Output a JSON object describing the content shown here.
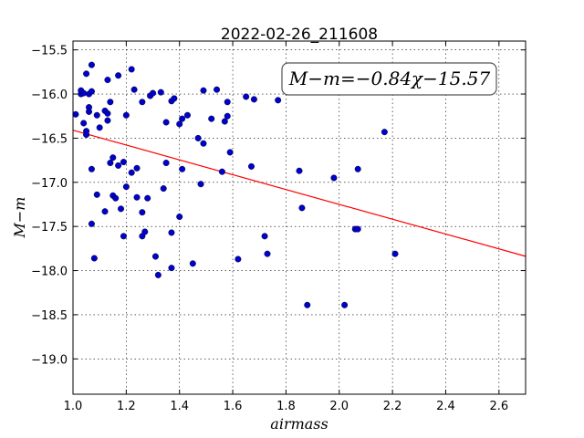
{
  "chart_data": {
    "type": "scatter",
    "title": "2022-02-26_211608",
    "xlabel": "airmass",
    "ylabel": "M−m",
    "xlim": [
      1.0,
      2.7
    ],
    "ylim": [
      -19.4,
      -15.4
    ],
    "y_inverted": true,
    "grid": true,
    "x_ticks": [
      "1.0",
      "1.2",
      "1.4",
      "1.6",
      "1.8",
      "2.0",
      "2.2",
      "2.4",
      "2.6"
    ],
    "y_ticks": [
      "−15.5",
      "−16.0",
      "−16.5",
      "−17.0",
      "−17.5",
      "−18.0",
      "−18.5",
      "−19.0"
    ],
    "annotation": "M−m=−0.84χ−15.57",
    "fit": {
      "slope": -0.84,
      "intercept": -15.57,
      "color": "#ff0000"
    },
    "point_color": "#0000cc",
    "points": [
      [
        1.01,
        -16.23
      ],
      [
        1.03,
        -16.0
      ],
      [
        1.03,
        -15.96
      ],
      [
        1.04,
        -16.33
      ],
      [
        1.04,
        -15.99
      ],
      [
        1.05,
        -15.77
      ],
      [
        1.05,
        -16.42
      ],
      [
        1.05,
        -16.46
      ],
      [
        1.06,
        -16.15
      ],
      [
        1.06,
        -16.2
      ],
      [
        1.06,
        -16.0
      ],
      [
        1.07,
        -15.97
      ],
      [
        1.07,
        -15.67
      ],
      [
        1.07,
        -16.85
      ],
      [
        1.07,
        -17.47
      ],
      [
        1.08,
        -17.86
      ],
      [
        1.09,
        -16.24
      ],
      [
        1.09,
        -17.14
      ],
      [
        1.1,
        -16.38
      ],
      [
        1.12,
        -17.33
      ],
      [
        1.12,
        -16.19
      ],
      [
        1.13,
        -16.3
      ],
      [
        1.13,
        -16.22
      ],
      [
        1.13,
        -15.84
      ],
      [
        1.14,
        -16.09
      ],
      [
        1.14,
        -16.78
      ],
      [
        1.15,
        -16.72
      ],
      [
        1.15,
        -17.15
      ],
      [
        1.16,
        -17.18
      ],
      [
        1.17,
        -16.81
      ],
      [
        1.17,
        -15.79
      ],
      [
        1.18,
        -17.3
      ],
      [
        1.19,
        -16.77
      ],
      [
        1.19,
        -17.61
      ],
      [
        1.2,
        -16.24
      ],
      [
        1.2,
        -17.05
      ],
      [
        1.22,
        -16.89
      ],
      [
        1.22,
        -15.72
      ],
      [
        1.23,
        -15.95
      ],
      [
        1.24,
        -16.84
      ],
      [
        1.24,
        -17.17
      ],
      [
        1.26,
        -17.34
      ],
      [
        1.26,
        -17.61
      ],
      [
        1.26,
        -16.09
      ],
      [
        1.27,
        -17.56
      ],
      [
        1.28,
        -17.18
      ],
      [
        1.29,
        -16.02
      ],
      [
        1.3,
        -15.99
      ],
      [
        1.31,
        -17.84
      ],
      [
        1.32,
        -18.05
      ],
      [
        1.33,
        -15.98
      ],
      [
        1.34,
        -17.07
      ],
      [
        1.35,
        -16.32
      ],
      [
        1.35,
        -16.78
      ],
      [
        1.37,
        -16.08
      ],
      [
        1.37,
        -17.57
      ],
      [
        1.37,
        -17.97
      ],
      [
        1.38,
        -16.05
      ],
      [
        1.4,
        -16.34
      ],
      [
        1.4,
        -17.39
      ],
      [
        1.41,
        -16.85
      ],
      [
        1.41,
        -16.28
      ],
      [
        1.43,
        -16.24
      ],
      [
        1.45,
        -17.92
      ],
      [
        1.47,
        -16.5
      ],
      [
        1.48,
        -17.02
      ],
      [
        1.49,
        -15.96
      ],
      [
        1.49,
        -16.56
      ],
      [
        1.52,
        -16.28
      ],
      [
        1.54,
        -15.95
      ],
      [
        1.56,
        -16.88
      ],
      [
        1.57,
        -16.31
      ],
      [
        1.58,
        -16.25
      ],
      [
        1.58,
        -16.09
      ],
      [
        1.59,
        -16.66
      ],
      [
        1.62,
        -17.87
      ],
      [
        1.65,
        -16.03
      ],
      [
        1.67,
        -16.82
      ],
      [
        1.68,
        -16.06
      ],
      [
        1.72,
        -17.61
      ],
      [
        1.73,
        -17.81
      ],
      [
        1.77,
        -16.07
      ],
      [
        1.85,
        -16.87
      ],
      [
        1.86,
        -17.29
      ],
      [
        1.88,
        -18.39
      ],
      [
        1.98,
        -16.95
      ],
      [
        2.02,
        -18.39
      ],
      [
        2.06,
        -17.53
      ],
      [
        2.07,
        -16.85
      ],
      [
        2.07,
        -17.53
      ],
      [
        2.17,
        -16.43
      ],
      [
        2.21,
        -17.81
      ]
    ]
  }
}
